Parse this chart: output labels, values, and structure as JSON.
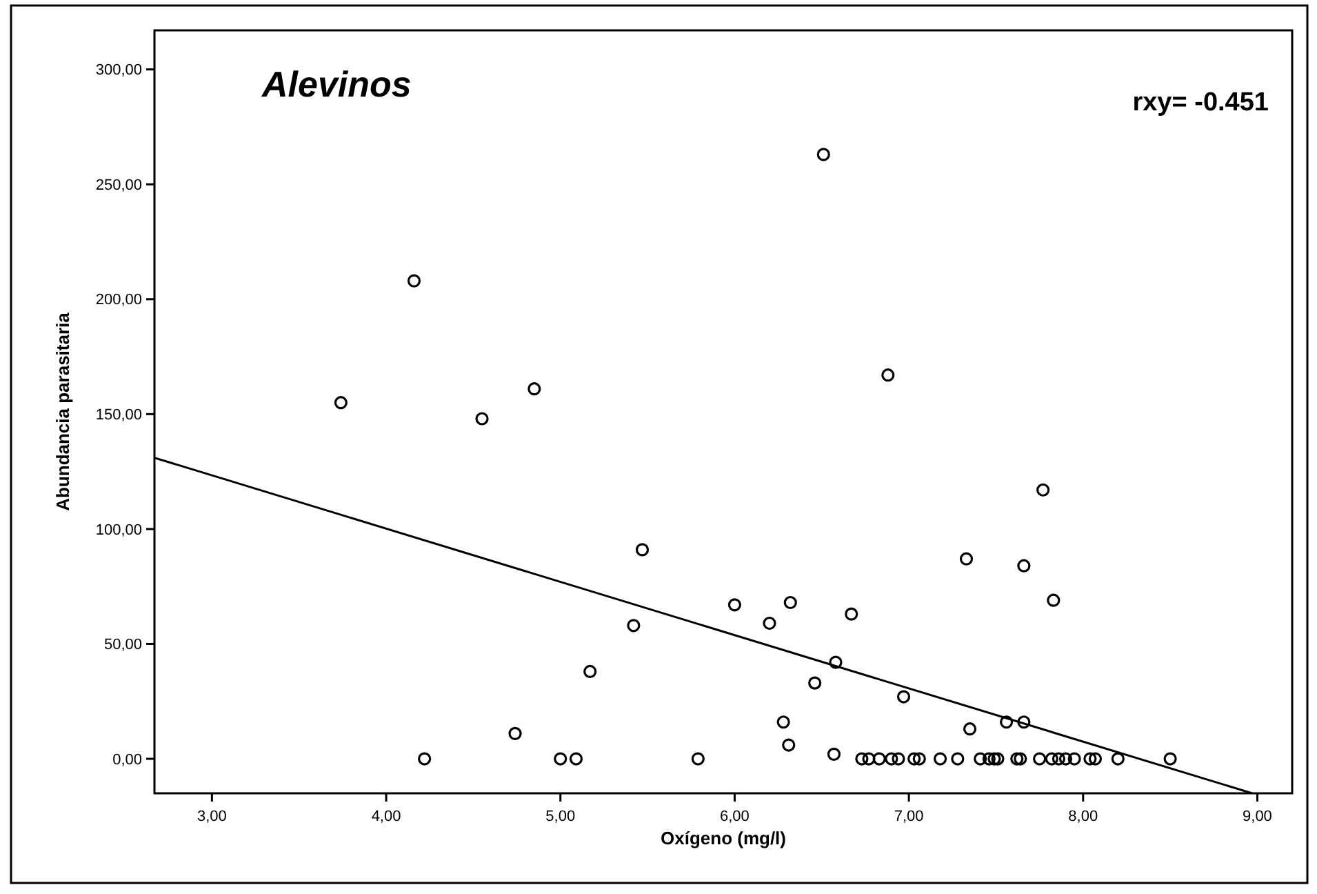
{
  "chart_data": {
    "type": "scatter",
    "title": "Alevinos",
    "xlabel": "Oxígeno (mg/l)",
    "ylabel": "Abundancia parasitaria",
    "annotations": [
      "rxy= -0.451"
    ],
    "xlim": [
      2.67,
      9.2
    ],
    "ylim": [
      -15,
      317
    ],
    "xticks": [
      {
        "value": 3,
        "label": "3,00"
      },
      {
        "value": 4,
        "label": "4,00"
      },
      {
        "value": 5,
        "label": "5,00"
      },
      {
        "value": 6,
        "label": "6,00"
      },
      {
        "value": 7,
        "label": "7,00"
      },
      {
        "value": 8,
        "label": "8,00"
      },
      {
        "value": 9,
        "label": "9,00"
      }
    ],
    "yticks": [
      {
        "value": 0,
        "label": "0,00"
      },
      {
        "value": 50,
        "label": "50,00"
      },
      {
        "value": 100,
        "label": "100,00"
      },
      {
        "value": 150,
        "label": "150,00"
      },
      {
        "value": 200,
        "label": "200,00"
      },
      {
        "value": 250,
        "label": "250,00"
      },
      {
        "value": 300,
        "label": "300,00"
      }
    ],
    "grid": false,
    "marker": "circle",
    "series": [
      {
        "color": "#000000",
        "x": [
          3.74,
          4.16,
          4.22,
          4.55,
          4.85,
          4.74,
          5.0,
          5.09,
          5.17,
          5.42,
          5.47,
          5.79,
          6.0,
          6.2,
          6.32,
          6.28,
          6.31,
          6.46,
          6.58,
          6.57,
          6.67,
          6.51,
          6.88,
          6.97,
          7.33,
          7.35,
          7.56,
          7.66,
          7.66,
          7.77,
          7.83,
          6.73,
          6.77,
          6.83,
          6.9,
          6.94,
          7.03,
          7.06,
          7.18,
          7.28,
          7.41,
          7.46,
          7.49,
          7.51,
          7.62,
          7.64,
          7.75,
          7.82,
          7.86,
          7.9,
          7.95,
          8.04,
          8.07,
          8.2,
          8.5
        ],
        "values": [
          155,
          208,
          0,
          148,
          161,
          11,
          0,
          0,
          38,
          58,
          91,
          0,
          67,
          59,
          68,
          16,
          6,
          33,
          42,
          2,
          63,
          263,
          167,
          27,
          87,
          13,
          16,
          16,
          84,
          117,
          69,
          0,
          0,
          0,
          0,
          0,
          0,
          0,
          0,
          0,
          0,
          0,
          0,
          0,
          0,
          0,
          0,
          0,
          0,
          0,
          0,
          0,
          0,
          0,
          0
        ]
      },
      {
        "type": "line",
        "color": "#000000",
        "marker": "none",
        "x": [
          2.67,
          8.97
        ],
        "values": [
          131,
          -15
        ]
      }
    ]
  }
}
